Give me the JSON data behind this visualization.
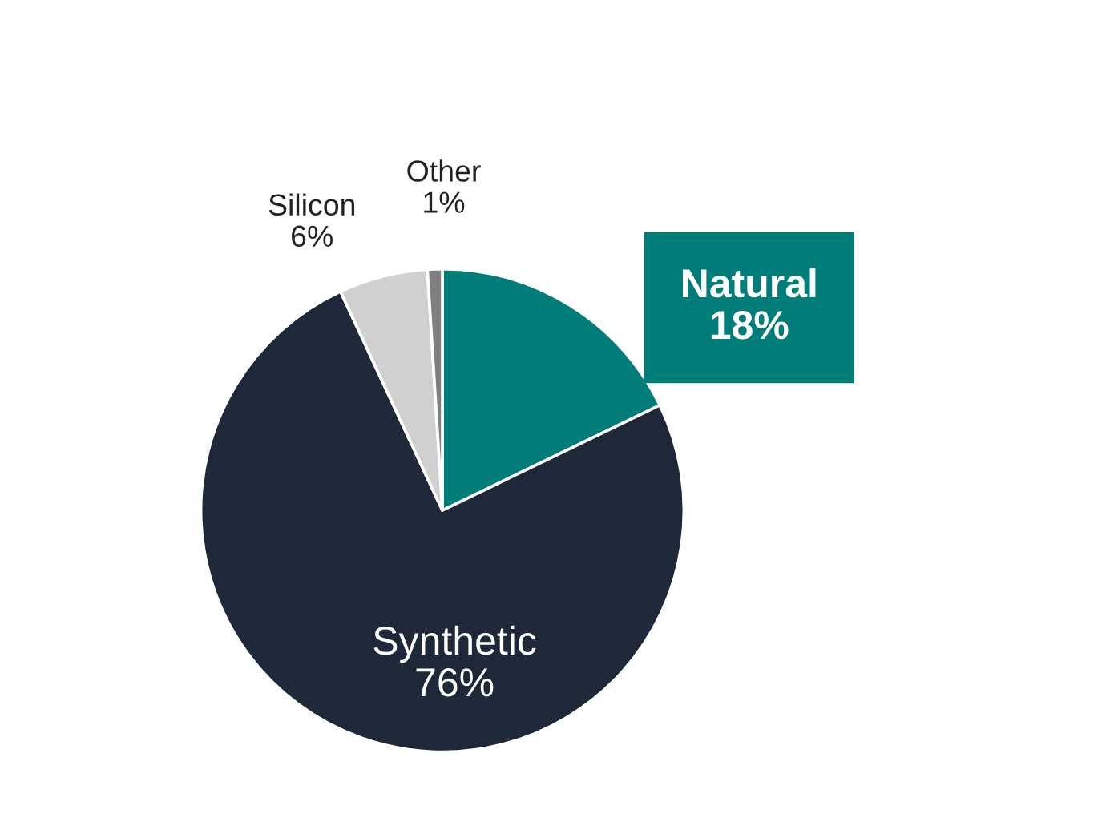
{
  "chart_data": {
    "type": "pie",
    "categories": [
      "Natural",
      "Synthetic",
      "Silicon",
      "Other"
    ],
    "values": [
      18,
      76,
      6,
      1
    ],
    "value_labels": [
      "18%",
      "76%",
      "6%",
      "1%"
    ],
    "colors": [
      "#007d78",
      "#1f2838",
      "#d0d0d0",
      "#808080"
    ]
  }
}
